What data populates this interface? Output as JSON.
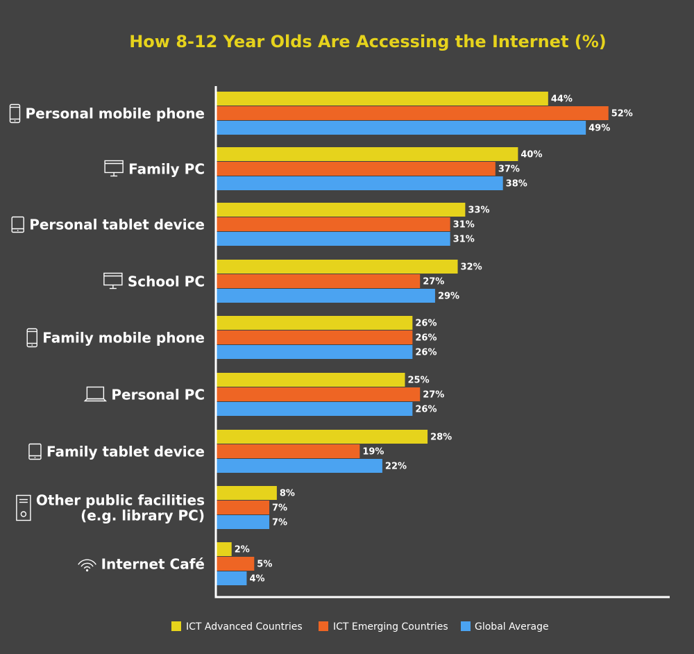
{
  "chart_data": {
    "type": "bar",
    "orientation": "horizontal",
    "title": "How 8-12 Year Olds Are Accessing the Internet (%)",
    "value_suffix": "%",
    "xlim": [
      0,
      60
    ],
    "grid": false,
    "legend_position": "bottom",
    "categories": [
      {
        "label": "Personal mobile phone",
        "icon": "mobile-phone-icon"
      },
      {
        "label": "Family PC",
        "icon": "desktop-monitor-icon"
      },
      {
        "label": "Personal tablet device",
        "icon": "tablet-icon"
      },
      {
        "label": "School PC",
        "icon": "desktop-monitor-icon"
      },
      {
        "label": "Family mobile phone",
        "icon": "mobile-phone-icon"
      },
      {
        "label": "Personal PC",
        "icon": "laptop-icon"
      },
      {
        "label": "Family tablet device",
        "icon": "tablet-icon"
      },
      {
        "label": "Other public facilities\n(e.g. library PC)",
        "icon": "pc-tower-icon"
      },
      {
        "label": "Internet Café",
        "icon": "wifi-icon"
      }
    ],
    "series": [
      {
        "name": "ICT Advanced Countries",
        "color": "#e6d31c",
        "values": [
          44,
          40,
          33,
          32,
          26,
          25,
          28,
          8,
          2
        ]
      },
      {
        "name": "ICT Emerging Countries",
        "color": "#ee6524",
        "values": [
          52,
          37,
          31,
          27,
          26,
          27,
          19,
          7,
          5
        ]
      },
      {
        "name": "Global Average",
        "color": "#4ba3f1",
        "values": [
          49,
          38,
          31,
          29,
          26,
          26,
          22,
          7,
          4
        ]
      }
    ]
  },
  "colors": {
    "background": "#424242",
    "title": "#e6d31c",
    "axis": "#ffffff",
    "text": "#ffffff"
  }
}
